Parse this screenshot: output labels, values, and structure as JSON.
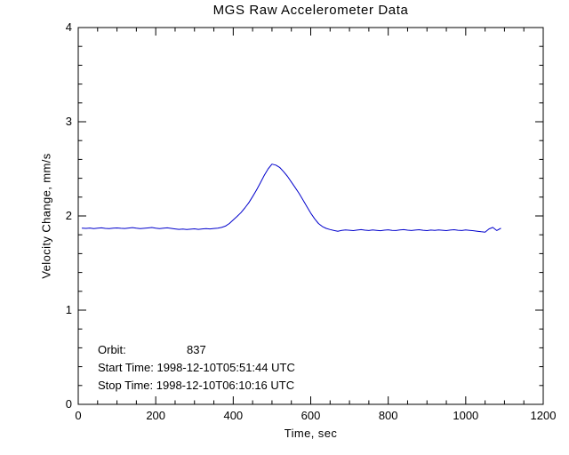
{
  "annotations": {
    "orbit_label": "Orbit:",
    "orbit_value": "837",
    "start_time": "Start Time: 1998-12-10T05:51:44 UTC",
    "stop_time": "Stop Time: 1998-12-10T06:10:16 UTC"
  },
  "chart_data": {
    "type": "line",
    "title": "MGS Raw Accelerometer Data",
    "xlabel": "Time, sec",
    "ylabel": "Velocity Change, mm/s",
    "xlim": [
      0,
      1200
    ],
    "ylim": [
      0,
      4
    ],
    "xticks": [
      0,
      200,
      400,
      600,
      800,
      1000,
      1200
    ],
    "yticks": [
      0,
      1,
      2,
      3,
      4
    ],
    "x_minor_step": 50,
    "y_minor_step": 0.2,
    "grid": false,
    "legend": "none",
    "line_color": "#0000cc",
    "axis_color": "#000000",
    "series": [
      {
        "name": "velocity_change",
        "x": [
          10,
          20,
          30,
          40,
          50,
          60,
          70,
          80,
          90,
          100,
          110,
          120,
          130,
          140,
          150,
          160,
          170,
          180,
          190,
          200,
          210,
          220,
          230,
          240,
          250,
          260,
          270,
          280,
          290,
          300,
          310,
          320,
          330,
          340,
          350,
          360,
          370,
          380,
          390,
          400,
          410,
          420,
          430,
          440,
          450,
          460,
          470,
          480,
          490,
          500,
          510,
          520,
          530,
          540,
          550,
          560,
          570,
          580,
          590,
          600,
          610,
          620,
          630,
          640,
          650,
          660,
          670,
          680,
          690,
          700,
          710,
          720,
          730,
          740,
          750,
          760,
          770,
          780,
          790,
          800,
          810,
          820,
          830,
          840,
          850,
          860,
          870,
          880,
          890,
          900,
          910,
          920,
          930,
          940,
          950,
          960,
          970,
          980,
          990,
          1000,
          1010,
          1020,
          1030,
          1040,
          1050,
          1060,
          1070,
          1080,
          1090
        ],
        "y": [
          1.87,
          1.868,
          1.872,
          1.866,
          1.87,
          1.874,
          1.868,
          1.866,
          1.871,
          1.873,
          1.869,
          1.867,
          1.872,
          1.876,
          1.87,
          1.865,
          1.869,
          1.873,
          1.877,
          1.871,
          1.866,
          1.87,
          1.874,
          1.868,
          1.862,
          1.858,
          1.861,
          1.856,
          1.859,
          1.863,
          1.858,
          1.862,
          1.866,
          1.862,
          1.867,
          1.871,
          1.878,
          1.892,
          1.92,
          1.958,
          1.995,
          2.035,
          2.085,
          2.14,
          2.205,
          2.275,
          2.35,
          2.43,
          2.5,
          2.55,
          2.54,
          2.515,
          2.47,
          2.42,
          2.36,
          2.3,
          2.24,
          2.17,
          2.1,
          2.03,
          1.97,
          1.92,
          1.888,
          1.868,
          1.856,
          1.845,
          1.838,
          1.846,
          1.852,
          1.848,
          1.844,
          1.85,
          1.855,
          1.849,
          1.845,
          1.851,
          1.847,
          1.843,
          1.849,
          1.853,
          1.847,
          1.845,
          1.851,
          1.855,
          1.849,
          1.845,
          1.85,
          1.854,
          1.848,
          1.844,
          1.85,
          1.846,
          1.852,
          1.848,
          1.844,
          1.85,
          1.854,
          1.848,
          1.845,
          1.851,
          1.847,
          1.843,
          1.838,
          1.832,
          1.828,
          1.862,
          1.878,
          1.845,
          1.868
        ]
      }
    ]
  }
}
